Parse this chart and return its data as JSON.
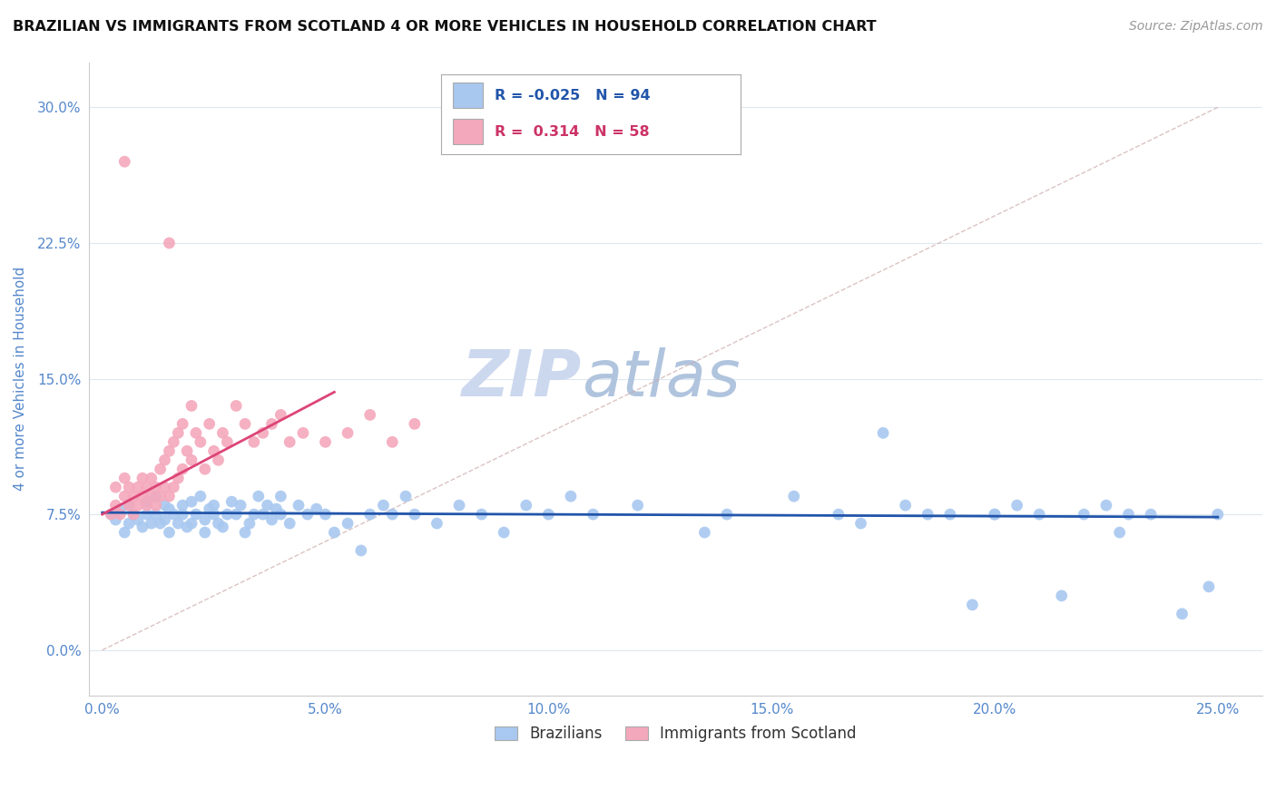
{
  "title": "BRAZILIAN VS IMMIGRANTS FROM SCOTLAND 4 OR MORE VEHICLES IN HOUSEHOLD CORRELATION CHART",
  "source": "Source: ZipAtlas.com",
  "ylabel": "4 or more Vehicles in Household",
  "xlabel_vals": [
    0.0,
    5.0,
    10.0,
    15.0,
    20.0,
    25.0
  ],
  "ylabel_vals": [
    0.0,
    7.5,
    15.0,
    22.5,
    30.0
  ],
  "xlim": [
    -0.3,
    26.0
  ],
  "ylim": [
    -2.5,
    32.5
  ],
  "legend1_label": "Brazilians",
  "legend2_label": "Immigrants from Scotland",
  "R_blue": -0.025,
  "N_blue": 94,
  "R_pink": 0.314,
  "N_pink": 58,
  "blue_color": "#a8c8f0",
  "pink_color": "#f4a8bc",
  "blue_line_color": "#2255aa",
  "pink_line_color": "#dd4477",
  "diagonal_color": "#ccaaaa",
  "grid_color": "#dde8f0",
  "background_color": "#ffffff",
  "title_color": "#111111",
  "axis_tick_color": "#5588cc",
  "ylabel_color": "#5588cc",
  "watermark_zip_color": "#ccddf5",
  "watermark_atlas_color": "#b8cce8",
  "source_color": "#999999",
  "blue_scatter_x": [
    0.2,
    0.3,
    0.4,
    0.5,
    0.6,
    0.6,
    0.7,
    0.8,
    0.9,
    1.0,
    1.0,
    1.1,
    1.2,
    1.2,
    1.3,
    1.4,
    1.4,
    1.5,
    1.5,
    1.6,
    1.7,
    1.8,
    1.8,
    1.9,
    2.0,
    2.0,
    2.1,
    2.2,
    2.3,
    2.3,
    2.4,
    2.5,
    2.5,
    2.6,
    2.7,
    2.8,
    2.9,
    3.0,
    3.1,
    3.2,
    3.3,
    3.4,
    3.5,
    3.6,
    3.7,
    3.8,
    3.9,
    4.0,
    4.0,
    4.2,
    4.4,
    4.6,
    4.8,
    5.0,
    5.2,
    5.5,
    5.8,
    6.0,
    6.3,
    6.5,
    6.8,
    7.0,
    7.5,
    8.0,
    8.5,
    9.0,
    9.5,
    10.0,
    10.5,
    11.0,
    12.0,
    13.5,
    14.0,
    15.5,
    16.5,
    17.0,
    18.0,
    18.5,
    19.0,
    20.0,
    20.5,
    21.0,
    22.0,
    22.5,
    23.0,
    21.5,
    19.5,
    20.0,
    22.8,
    24.2,
    24.8,
    25.0,
    17.5,
    23.5
  ],
  "blue_scatter_y": [
    7.5,
    7.2,
    7.8,
    6.5,
    7.0,
    8.0,
    7.5,
    7.2,
    6.8,
    7.5,
    8.2,
    7.0,
    7.5,
    8.5,
    7.0,
    7.2,
    8.0,
    6.5,
    7.8,
    7.5,
    7.0,
    7.5,
    8.0,
    6.8,
    7.0,
    8.2,
    7.5,
    8.5,
    7.2,
    6.5,
    7.8,
    7.5,
    8.0,
    7.0,
    6.8,
    7.5,
    8.2,
    7.5,
    8.0,
    6.5,
    7.0,
    7.5,
    8.5,
    7.5,
    8.0,
    7.2,
    7.8,
    7.5,
    8.5,
    7.0,
    8.0,
    7.5,
    7.8,
    7.5,
    6.5,
    7.0,
    5.5,
    7.5,
    8.0,
    7.5,
    8.5,
    7.5,
    7.0,
    8.0,
    7.5,
    6.5,
    8.0,
    7.5,
    8.5,
    7.5,
    8.0,
    6.5,
    7.5,
    8.5,
    7.5,
    7.0,
    8.0,
    7.5,
    7.5,
    7.5,
    8.0,
    7.5,
    7.5,
    8.0,
    7.5,
    3.0,
    2.5,
    7.5,
    6.5,
    2.0,
    3.5,
    7.5,
    12.0,
    7.5
  ],
  "pink_scatter_x": [
    0.2,
    0.3,
    0.3,
    0.4,
    0.5,
    0.5,
    0.6,
    0.6,
    0.7,
    0.7,
    0.8,
    0.8,
    0.9,
    0.9,
    1.0,
    1.0,
    1.1,
    1.1,
    1.2,
    1.2,
    1.3,
    1.3,
    1.4,
    1.4,
    1.5,
    1.5,
    1.6,
    1.6,
    1.7,
    1.7,
    1.8,
    1.8,
    1.9,
    2.0,
    2.0,
    2.1,
    2.2,
    2.3,
    2.4,
    2.5,
    2.6,
    2.7,
    2.8,
    3.0,
    3.2,
    3.4,
    3.6,
    3.8,
    4.0,
    4.2,
    4.5,
    5.0,
    5.5,
    6.0,
    6.5,
    7.0,
    0.5,
    1.5
  ],
  "pink_scatter_y": [
    7.5,
    8.0,
    9.0,
    7.5,
    8.5,
    9.5,
    8.0,
    9.0,
    7.5,
    8.5,
    8.0,
    9.0,
    8.5,
    9.5,
    8.0,
    9.0,
    8.5,
    9.5,
    8.0,
    9.0,
    8.5,
    10.0,
    9.0,
    10.5,
    8.5,
    11.0,
    9.0,
    11.5,
    9.5,
    12.0,
    10.0,
    12.5,
    11.0,
    10.5,
    13.5,
    12.0,
    11.5,
    10.0,
    12.5,
    11.0,
    10.5,
    12.0,
    11.5,
    13.5,
    12.5,
    11.5,
    12.0,
    12.5,
    13.0,
    11.5,
    12.0,
    11.5,
    12.0,
    13.0,
    11.5,
    12.5,
    27.0,
    22.5
  ]
}
